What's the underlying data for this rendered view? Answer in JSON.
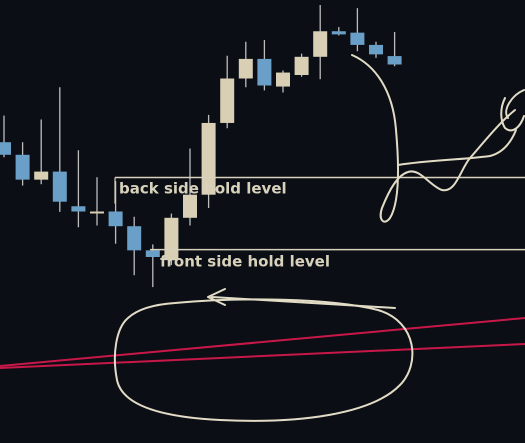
{
  "chart_data": {
    "type": "candlestick",
    "ylim": [
      0,
      100
    ],
    "colors": {
      "background": "#0b0e14",
      "bullish": "#d8cfb4",
      "bearish": "#6aa0c8",
      "wick": "#bdbdbd",
      "level_line": "#d8d2bd",
      "trendline": "#c8184a",
      "annotation_stroke": "#e2dcc6"
    },
    "candles": [
      {
        "o": 60.8,
        "h": 68.4,
        "l": 56.5,
        "c": 57.2
      },
      {
        "o": 57.2,
        "h": 60.8,
        "l": 48.4,
        "c": 50.1
      },
      {
        "o": 50.1,
        "h": 67.3,
        "l": 48.8,
        "c": 52.4
      },
      {
        "o": 52.4,
        "h": 76.5,
        "l": 40.9,
        "c": 43.8
      },
      {
        "o": 42.5,
        "h": 58.5,
        "l": 36.5,
        "c": 41.0
      },
      {
        "o": 41.0,
        "h": 50.8,
        "l": 37.0,
        "c": 41.0
      },
      {
        "o": 41.0,
        "h": 49.7,
        "l": 31.8,
        "c": 36.8
      },
      {
        "o": 36.8,
        "h": 39.5,
        "l": 22.8,
        "c": 29.9
      },
      {
        "o": 29.9,
        "h": 31.6,
        "l": 19.4,
        "c": 28.0
      },
      {
        "o": 27.1,
        "h": 40.4,
        "l": 25.7,
        "c": 39.2
      },
      {
        "o": 39.2,
        "h": 59.0,
        "l": 37.0,
        "c": 45.8
      },
      {
        "o": 45.8,
        "h": 68.6,
        "l": 42.0,
        "c": 66.3
      },
      {
        "o": 66.3,
        "h": 85.5,
        "l": 64.8,
        "c": 79.0
      },
      {
        "o": 79.0,
        "h": 89.5,
        "l": 76.5,
        "c": 84.6
      },
      {
        "o": 84.6,
        "h": 90.0,
        "l": 75.6,
        "c": 77.0
      },
      {
        "o": 76.7,
        "h": 81.3,
        "l": 75.0,
        "c": 80.7
      },
      {
        "o": 80.0,
        "h": 86.1,
        "l": 79.5,
        "c": 85.2
      },
      {
        "o": 85.2,
        "h": 100.0,
        "l": 78.8,
        "c": 92.5
      },
      {
        "o": 92.5,
        "h": 93.7,
        "l": 91.3,
        "c": 91.6
      },
      {
        "o": 92.1,
        "h": 99.1,
        "l": 86.8,
        "c": 88.6
      },
      {
        "o": 88.6,
        "h": 89.5,
        "l": 84.9,
        "c": 85.9
      },
      {
        "o": 85.4,
        "h": 92.3,
        "l": 82.5,
        "c": 83.0
      }
    ],
    "levels": [
      {
        "name": "back side hold level",
        "value": 50.7
      },
      {
        "name": "front side hold level",
        "value": 30.1
      }
    ]
  }
}
